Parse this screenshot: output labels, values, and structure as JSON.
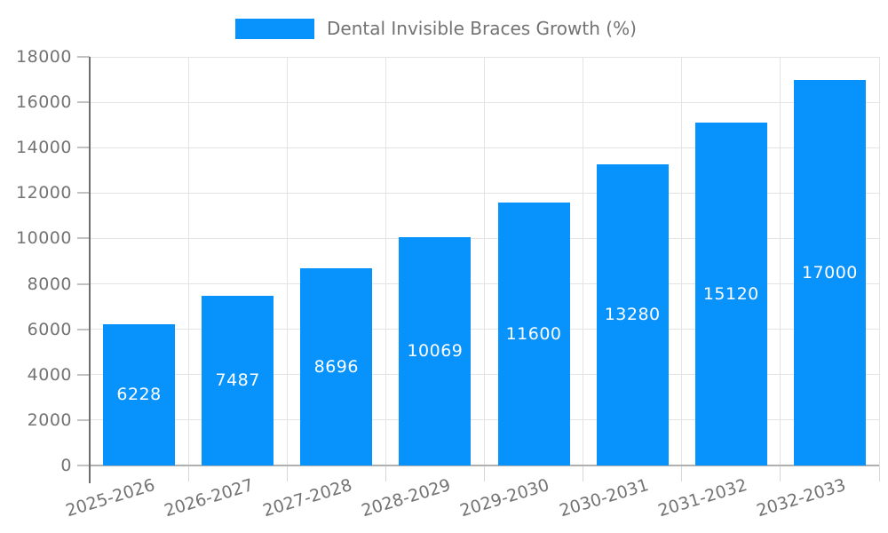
{
  "chart_data": {
    "type": "bar",
    "title": "Dental Invisible Braces Growth (%)",
    "categories": [
      "2025-2026",
      "2026-2027",
      "2027-2028",
      "2028-2029",
      "2029-2030",
      "2030-2031",
      "2031-2032",
      "2032-2033"
    ],
    "values": [
      6228,
      7487,
      8696,
      10069,
      11600,
      13280,
      15120,
      17000
    ],
    "xlabel": "",
    "ylabel": "",
    "ylim": [
      0,
      18000
    ],
    "ytick_step": 2000,
    "grid": "on",
    "legend_position": "top",
    "legend_label": "Dental Invisible Braces Growth (%)",
    "bar_color": "#0892fc",
    "value_label_color": "#ffffff",
    "grid_color": "#e4e4e4",
    "axis_color": "#6e6e6e",
    "tick_label_color": "#737373"
  }
}
